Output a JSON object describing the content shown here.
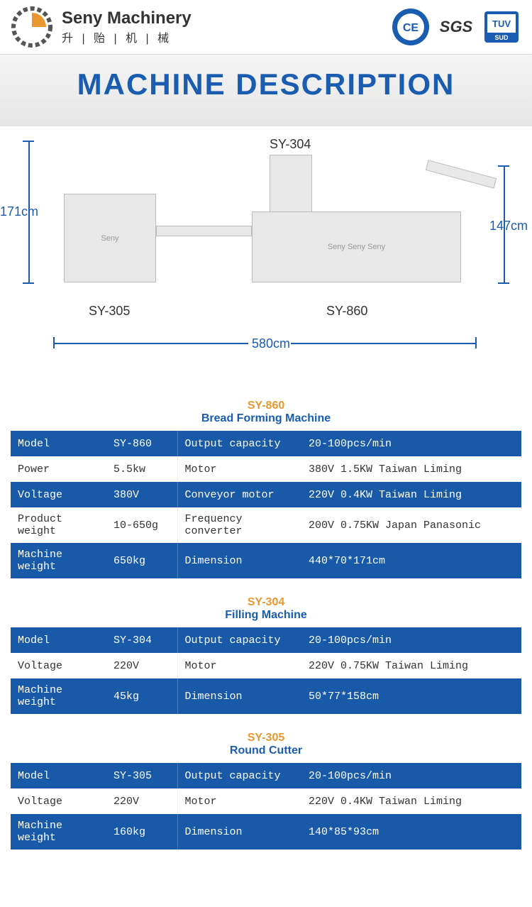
{
  "brand": {
    "name": "Seny Machinery",
    "subtitle": "升 | 贻 | 机 | 械"
  },
  "certs": [
    "CE",
    "SGS",
    "TÜV"
  ],
  "page_title": "MACHINE DESCRIPTION",
  "diagram": {
    "height_left": "171cm",
    "height_right": "147cm",
    "width": "580cm",
    "label_top": "SY-304",
    "label_left": "SY-305",
    "label_right": "SY-860",
    "colors": {
      "dim_color": "#1a5db0",
      "machine_fill": "#e8e8e8"
    }
  },
  "tables": [
    {
      "model_name": "SY-860",
      "machine_type": "Bread Forming Machine",
      "rows": [
        {
          "style": "blue",
          "c1": "Model",
          "c2": "SY-860",
          "c3": "Output capacity",
          "c4": "20-100pcs/min"
        },
        {
          "style": "white",
          "c1": "Power",
          "c2": "5.5kw",
          "c3": "Motor",
          "c4": "380V 1.5KW Taiwan Liming"
        },
        {
          "style": "blue",
          "c1": "Voltage",
          "c2": "380V",
          "c3": "Conveyor motor",
          "c4": "220V 0.4KW Taiwan Liming"
        },
        {
          "style": "white",
          "c1": "Product weight",
          "c2": "10-650g",
          "c3": "Frequency converter",
          "c4": "200V 0.75KW Japan Panasonic"
        },
        {
          "style": "blue",
          "c1": "Machine weight",
          "c2": "650kg",
          "c3": "Dimension",
          "c4": "440*70*171cm"
        }
      ]
    },
    {
      "model_name": "SY-304",
      "machine_type": "Filling Machine",
      "rows": [
        {
          "style": "blue",
          "c1": "Model",
          "c2": "SY-304",
          "c3": "Output capacity",
          "c4": "20-100pcs/min"
        },
        {
          "style": "white",
          "c1": "Voltage",
          "c2": "220V",
          "c3": "Motor",
          "c4": "220V 0.75KW Taiwan Liming"
        },
        {
          "style": "blue",
          "c1": "Machine weight",
          "c2": "45kg",
          "c3": "Dimension",
          "c4": "50*77*158cm"
        }
      ]
    },
    {
      "model_name": "SY-305",
      "machine_type": "Round Cutter",
      "rows": [
        {
          "style": "blue",
          "c1": "Model",
          "c2": "SY-305",
          "c3": "Output capacity",
          "c4": "20-100pcs/min"
        },
        {
          "style": "white",
          "c1": "Voltage",
          "c2": "220V",
          "c3": "Motor",
          "c4": "220V 0.4KW Taiwan Liming"
        },
        {
          "style": "blue",
          "c1": "Machine weight",
          "c2": "160kg",
          "c3": "Dimension",
          "c4": "140*85*93cm"
        }
      ]
    }
  ],
  "colors": {
    "primary_blue": "#195aa8",
    "accent_orange": "#eb972f",
    "title_blue": "#1a5db0"
  }
}
